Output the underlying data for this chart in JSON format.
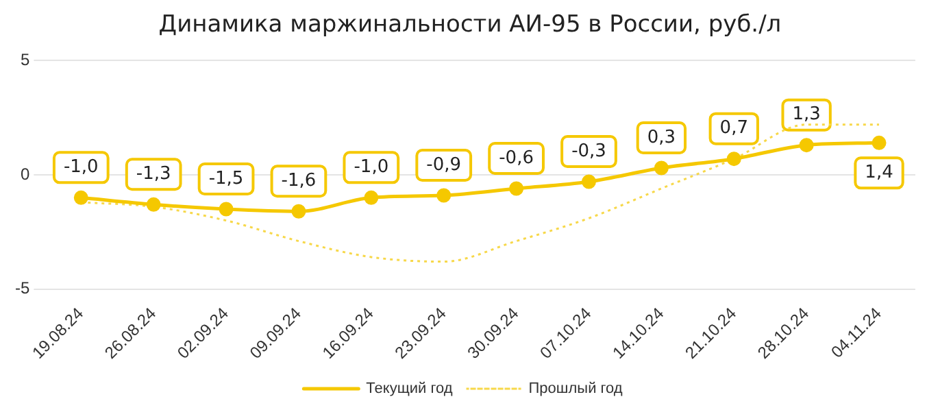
{
  "chart_data": {
    "type": "line",
    "title": "Динамика маржинальности АИ-95 в России, руб./л",
    "categories": [
      "19.08.24",
      "26.08.24",
      "02.09.24",
      "09.09.24",
      "16.09.24",
      "23.09.24",
      "30.09.24",
      "07.10.24",
      "14.10.24",
      "21.10.24",
      "28.10.24",
      "04.11.24"
    ],
    "series": [
      {
        "name": "Текущий год",
        "color": "#f5c800",
        "marker": "circle",
        "line_style": "solid",
        "values": [
          -1.0,
          -1.3,
          -1.5,
          -1.6,
          -1.0,
          -0.9,
          -0.6,
          -0.3,
          0.3,
          0.7,
          1.3,
          1.4
        ],
        "value_labels": [
          "-1,0",
          "-1,3",
          "-1,5",
          "-1,6",
          "-1,0",
          "-0,9",
          "-0,6",
          "-0,3",
          "0,3",
          "0,7",
          "1,3",
          "1,4"
        ]
      },
      {
        "name": "Прошлый год",
        "color": "#f7d84a",
        "marker": "none",
        "line_style": "dotted",
        "values": [
          -1.2,
          -1.4,
          -2.0,
          -2.9,
          -3.6,
          -3.8,
          -2.9,
          -1.9,
          -0.6,
          0.7,
          2.2,
          2.2
        ]
      }
    ],
    "ylim": [
      -5,
      5
    ],
    "yticks": [
      -5,
      0,
      5
    ],
    "grid": "y",
    "legend": "bottom"
  }
}
